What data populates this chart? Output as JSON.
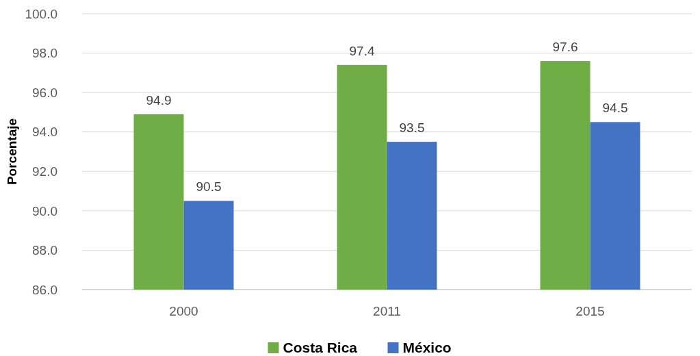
{
  "chart_data": {
    "type": "bar",
    "ylabel": "Porcentaje",
    "categories": [
      "2000",
      "2011",
      "2015"
    ],
    "series": [
      {
        "name": "Costa Rica",
        "color": "#70ad47",
        "values": [
          94.9,
          97.4,
          97.6
        ]
      },
      {
        "name": "México",
        "color": "#4472c4",
        "values": [
          90.5,
          93.5,
          94.5
        ]
      }
    ],
    "ylim": [
      86,
      100
    ],
    "yticks": [
      {
        "value": 86,
        "label": "86.0"
      },
      {
        "value": 88,
        "label": "88.0"
      },
      {
        "value": 90,
        "label": "90.0"
      },
      {
        "value": 92,
        "label": "92.0"
      },
      {
        "value": 94,
        "label": "94.0"
      },
      {
        "value": 96,
        "label": "96.0"
      },
      {
        "value": 98,
        "label": "98.0"
      },
      {
        "value": 100,
        "label": "100.0"
      }
    ],
    "grid": "y",
    "legend": "bottom",
    "data_labels": true
  }
}
